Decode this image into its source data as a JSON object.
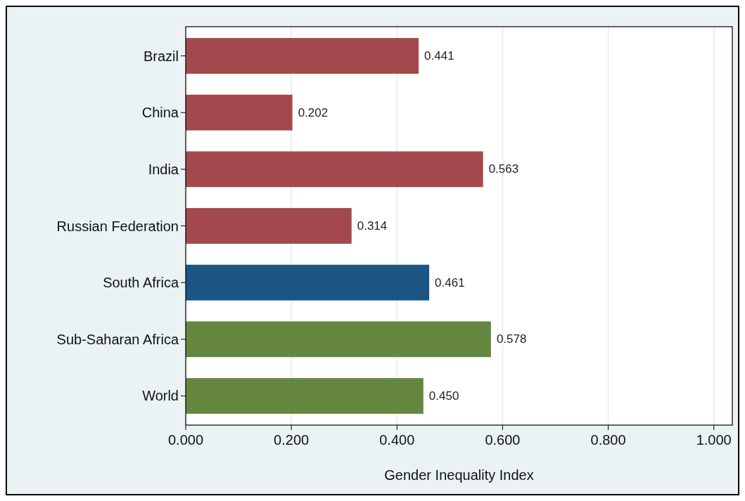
{
  "chart_data": {
    "type": "bar",
    "orientation": "horizontal",
    "xlabel": "Gender Inequality Index",
    "categories": [
      "Brazil",
      "China",
      "India",
      "Russian Federation",
      "South Africa",
      "Sub-Saharan Africa",
      "World"
    ],
    "values": [
      0.441,
      0.202,
      0.563,
      0.314,
      0.461,
      0.578,
      0.45
    ],
    "value_labels": [
      "0.441",
      "0.202",
      "0.563",
      "0.314",
      "0.461",
      "0.578",
      "0.450"
    ],
    "colors": [
      "#a3484c",
      "#a3484c",
      "#a3484c",
      "#a3484c",
      "#1b5583",
      "#66873f",
      "#66873f"
    ],
    "xlim": [
      0,
      1.035
    ],
    "xticks": [
      {
        "value": 0,
        "label": "0.000"
      },
      {
        "value": 0.2,
        "label": "0.200"
      },
      {
        "value": 0.4,
        "label": "0.400"
      },
      {
        "value": 0.6,
        "label": "0.600"
      },
      {
        "value": 0.8,
        "label": "0.800"
      },
      {
        "value": 1,
        "label": "1.000"
      }
    ],
    "grid": "x"
  }
}
